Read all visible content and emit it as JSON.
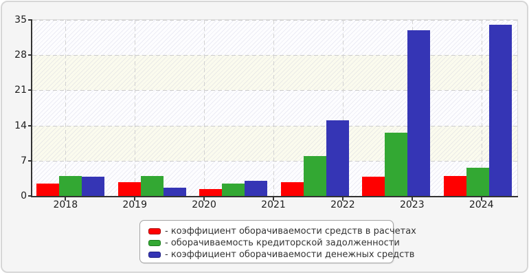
{
  "chart_data": {
    "type": "bar",
    "title": "",
    "xlabel": "",
    "ylabel": "",
    "ylim": [
      0,
      35
    ],
    "y_tick_labels": [
      "0",
      "7",
      "14",
      "21",
      "28",
      "35"
    ],
    "y_tick_values": [
      0,
      7,
      14,
      21,
      28,
      35
    ],
    "x_tick_labels": [
      "2018",
      "2019",
      "2020",
      "2021",
      "2022",
      "2023",
      "2024"
    ],
    "grid": true,
    "legend_position": "bottom",
    "layout_note": "6 bar groups rendered evenly across plot, 7 year tick labels",
    "series": [
      {
        "name": "коэффициент оборачиваемости средств в расчетах",
        "color": "#ff0000",
        "border_color": "#a80000",
        "values": [
          2.5,
          2.7,
          1.4,
          2.7,
          3.8,
          3.9
        ]
      },
      {
        "name": "оборачиваемость кредиторской задолженности",
        "color": "#33a833",
        "border_color": "#1d7a1d",
        "values": [
          4.0,
          4.0,
          2.4,
          7.9,
          12.6,
          5.6
        ]
      },
      {
        "name": "коэффициент оборачиваемости денежных средств",
        "color": "#3535b5",
        "border_color": "#1e1e80",
        "values": [
          3.8,
          1.6,
          3.0,
          15.0,
          33.0,
          34.0
        ]
      }
    ]
  },
  "legend": {
    "items": [
      {
        "swatch_color": "#ff0000",
        "swatch_border": "#a80000",
        "label": "- коэффициент оборачиваемости средств в расчетах"
      },
      {
        "swatch_color": "#33a833",
        "swatch_border": "#1d7a1d",
        "label": "- оборачиваемость кредиторской задолженности"
      },
      {
        "swatch_color": "#3535b5",
        "swatch_border": "#1e1e80",
        "label": "- коэффициент оборачиваемости денежных средств"
      }
    ]
  },
  "colors": {
    "panel_bg": "#f5f5f5",
    "panel_border": "#d6d6d6",
    "band_white": "#fdfdff",
    "band_cream": "#fbfbee",
    "gridline": "#cccccc",
    "axis": "#333333",
    "tick_text": "#1c1c1c"
  }
}
